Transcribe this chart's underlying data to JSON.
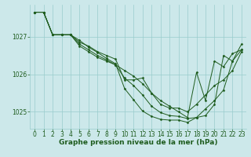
{
  "bg_color": "#cce8ea",
  "grid_color": "#99cccc",
  "line_color": "#1e5c1e",
  "marker_color": "#1e5c1e",
  "xlabel": "Graphe pression niveau de la mer (hPa)",
  "xlabel_fontsize": 6.5,
  "tick_fontsize": 5.5,
  "ylim": [
    1024.55,
    1027.85
  ],
  "xlim": [
    -0.5,
    23.5
  ],
  "yticks": [
    1025,
    1026,
    1027
  ],
  "xticks": [
    0,
    1,
    2,
    3,
    4,
    5,
    6,
    7,
    8,
    9,
    10,
    11,
    12,
    13,
    14,
    15,
    16,
    17,
    18,
    19,
    20,
    21,
    22,
    23
  ],
  "series": [
    [
      1027.65,
      1027.65,
      1027.05,
      1027.05,
      1027.05,
      1026.85,
      1026.75,
      1026.6,
      1026.5,
      1026.4,
      1025.85,
      1025.85,
      1025.9,
      1025.5,
      1025.3,
      1025.15,
      1025.0,
      1024.85,
      1026.05,
      1025.3,
      1026.35,
      1026.2,
      1026.55,
      1026.65
    ],
    [
      1027.65,
      1027.65,
      1027.05,
      1027.05,
      1027.05,
      1026.75,
      1026.6,
      1026.45,
      1026.35,
      1026.25,
      1026.1,
      1025.95,
      1025.75,
      1025.5,
      1025.2,
      1025.1,
      1025.1,
      1025.0,
      1025.2,
      1025.45,
      1025.7,
      1025.85,
      1026.1,
      1026.6
    ],
    [
      1027.65,
      1027.65,
      1027.05,
      1027.05,
      1027.05,
      1026.8,
      1026.65,
      1026.5,
      1026.38,
      1026.25,
      1025.9,
      1025.7,
      1025.45,
      1025.15,
      1024.98,
      1024.9,
      1024.88,
      1024.82,
      1024.85,
      1024.9,
      1025.2,
      1026.5,
      1026.35,
      1026.8
    ],
    [
      1027.65,
      1027.65,
      1027.05,
      1027.05,
      1027.05,
      1026.9,
      1026.72,
      1026.58,
      1026.42,
      1026.28,
      1025.62,
      1025.32,
      1025.02,
      1024.88,
      1024.8,
      1024.78,
      1024.78,
      1024.72,
      1024.85,
      1025.08,
      1025.3,
      1025.58,
      1026.35,
      1026.65
    ]
  ]
}
